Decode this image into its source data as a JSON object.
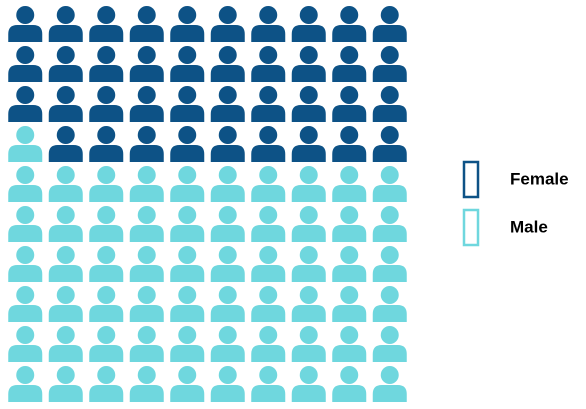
{
  "chart_data": {
    "type": "pictogram",
    "categories": [
      "Female",
      "Male"
    ],
    "values": [
      39,
      61
    ],
    "colors": [
      "#0d5286",
      "#6fd7de"
    ],
    "legend": "right"
  }
}
